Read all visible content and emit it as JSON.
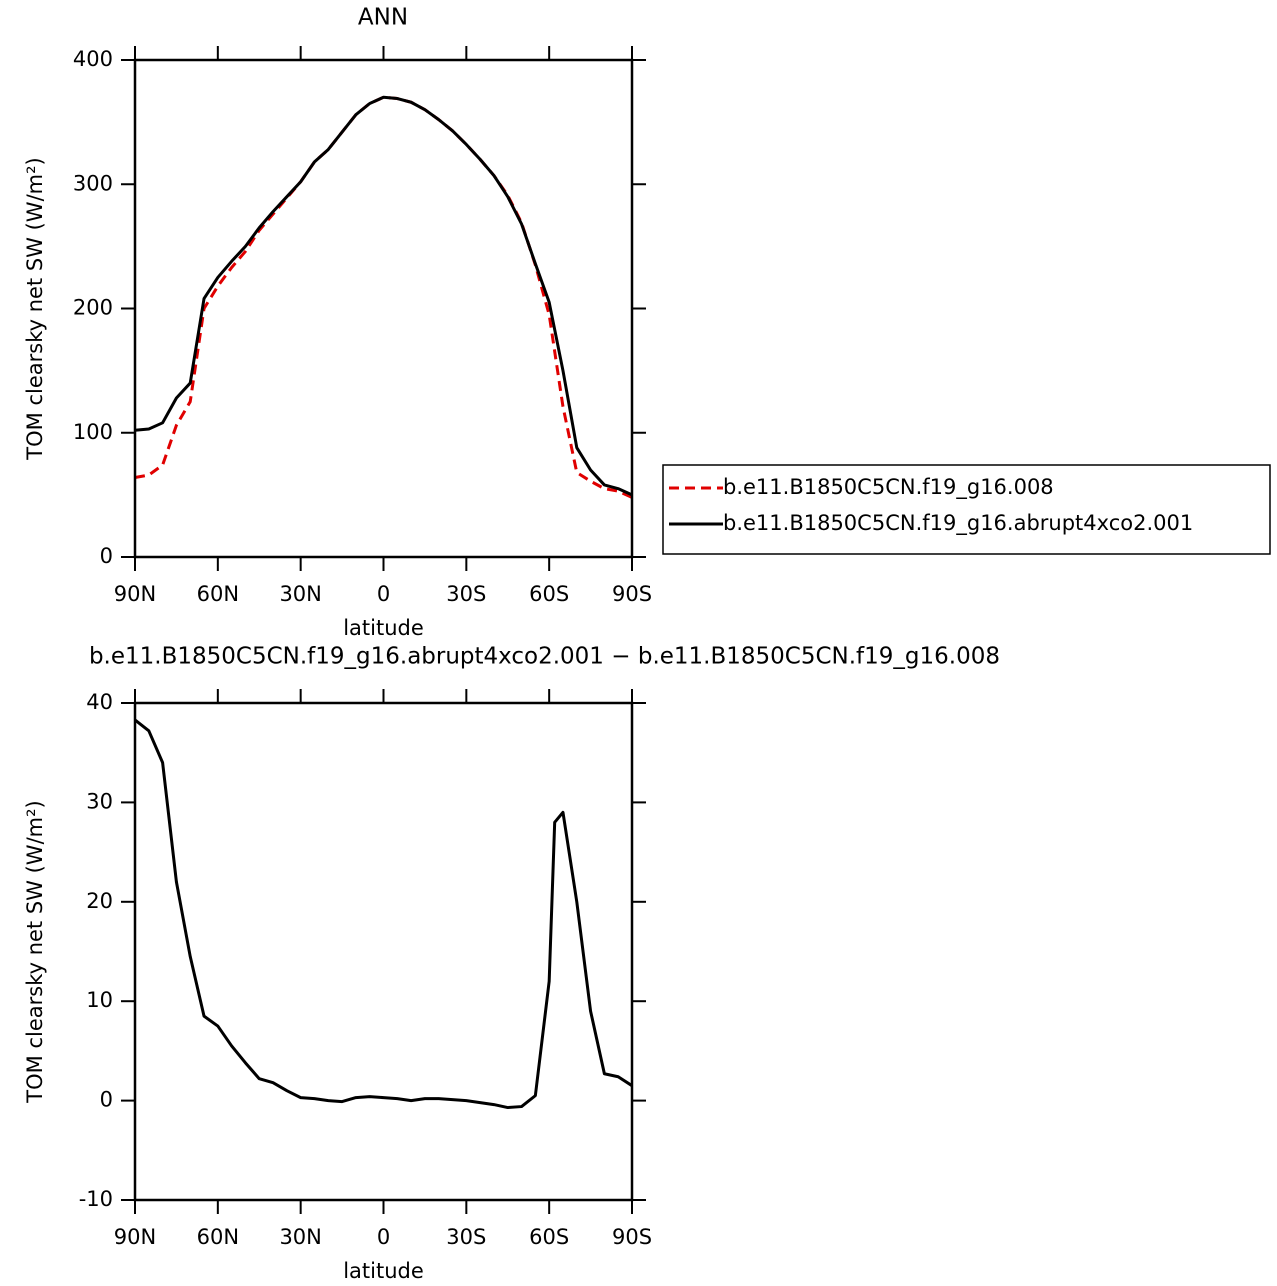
{
  "chart_data": [
    {
      "type": "line",
      "title": "ANN",
      "xlabel": "latitude",
      "ylabel": "TOM clearsky net SW (W/m²)",
      "x": [
        90,
        85,
        80,
        75,
        70,
        65,
        60,
        55,
        50,
        45,
        40,
        35,
        30,
        25,
        20,
        15,
        10,
        5,
        0,
        -5,
        -10,
        -15,
        -20,
        -25,
        -30,
        -35,
        -40,
        -45,
        -50,
        -55,
        -60,
        -65,
        -70,
        -75,
        -80,
        -85,
        -90
      ],
      "xlim": [
        90,
        -90
      ],
      "xticks": [
        {
          "value": 90,
          "label": "90N"
        },
        {
          "value": 60,
          "label": "60N"
        },
        {
          "value": 30,
          "label": "30N"
        },
        0,
        {
          "value": -30,
          "label": "30S"
        },
        {
          "value": -60,
          "label": "60S"
        },
        {
          "value": -90,
          "label": "90S"
        }
      ],
      "ylim": [
        0,
        400
      ],
      "yticks": [
        0,
        100,
        200,
        300,
        400
      ],
      "series": [
        {
          "name": "b.e11.B1850C5CN.f19_g16.008",
          "color": "#e00000",
          "dashed": true,
          "values": [
            64,
            66,
            74,
            106,
            125,
            200,
            218,
            233,
            246,
            263,
            276,
            289,
            302,
            318,
            328,
            342,
            356,
            365,
            370,
            369,
            366,
            360,
            352,
            343,
            332,
            320,
            307,
            291,
            269,
            235,
            195,
            121,
            68,
            61,
            55,
            53,
            48
          ]
        },
        {
          "name": "b.e11.B1850C5CN.f19_g16.abrupt4xco2.001",
          "color": "#000000",
          "dashed": false,
          "values": [
            102,
            103,
            108,
            128,
            140,
            208,
            225,
            238,
            250,
            265,
            278,
            290,
            302,
            318,
            328,
            342,
            356,
            365,
            370,
            369,
            366,
            360,
            352,
            343,
            332,
            320,
            307,
            290,
            268,
            236,
            205,
            150,
            88,
            70,
            58,
            55,
            50
          ]
        }
      ],
      "legend": "right"
    },
    {
      "type": "line",
      "title": "b.e11.B1850C5CN.f19_g16.abrupt4xco2.001 − b.e11.B1850C5CN.f19_g16.008",
      "xlabel": "latitude",
      "ylabel": "TOM clearsky net SW (W/m²)",
      "x": [
        90,
        85,
        80,
        75,
        70,
        65,
        60,
        55,
        50,
        45,
        40,
        35,
        30,
        25,
        20,
        15,
        10,
        5,
        0,
        -5,
        -10,
        -15,
        -20,
        -25,
        -30,
        -35,
        -40,
        -45,
        -50,
        -55,
        -60,
        -62,
        -65,
        -70,
        -75,
        -80,
        -85,
        -90
      ],
      "xlim": [
        90,
        -90
      ],
      "xticks": [
        {
          "value": 90,
          "label": "90N"
        },
        {
          "value": 60,
          "label": "60N"
        },
        {
          "value": 30,
          "label": "30N"
        },
        0,
        {
          "value": -30,
          "label": "30S"
        },
        {
          "value": -60,
          "label": "60S"
        },
        {
          "value": -90,
          "label": "90S"
        }
      ],
      "ylim": [
        -10,
        40
      ],
      "yticks": [
        -10,
        0,
        10,
        20,
        30,
        40
      ],
      "series": [
        {
          "color": "#000000",
          "dashed": false,
          "values": [
            38.3,
            37.2,
            34,
            22,
            14.5,
            8.5,
            7.5,
            5.5,
            3.8,
            2.2,
            1.8,
            1.0,
            0.3,
            0.2,
            0.0,
            -0.1,
            0.3,
            0.4,
            0.3,
            0.2,
            0.0,
            0.2,
            0.2,
            0.1,
            0.0,
            -0.2,
            -0.4,
            -0.7,
            -0.6,
            0.5,
            12,
            28,
            29,
            20,
            9,
            2.7,
            2.4,
            1.5
          ]
        }
      ]
    }
  ]
}
